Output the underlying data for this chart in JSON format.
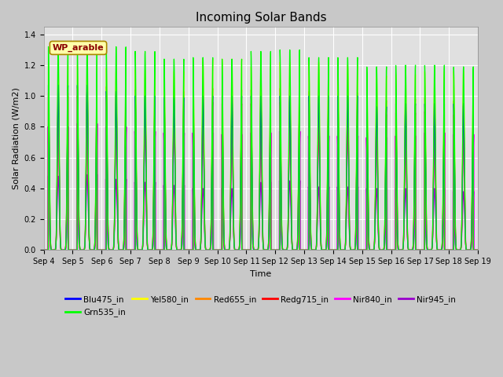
{
  "title": "Incoming Solar Bands",
  "xlabel": "Time",
  "ylabel": "Solar Radiation (W/m2)",
  "num_days": 15,
  "ylim": [
    0,
    1.45
  ],
  "yticks": [
    0.0,
    0.2,
    0.4,
    0.6,
    0.8,
    1.0,
    1.2,
    1.4
  ],
  "annotation": "WP_arable",
  "series": [
    {
      "name": "Blu475_in",
      "color": "#0000FF"
    },
    {
      "name": "Grn535_in",
      "color": "#00FF00"
    },
    {
      "name": "Yel580_in",
      "color": "#FFFF00"
    },
    {
      "name": "Red655_in",
      "color": "#FF8800"
    },
    {
      "name": "Redg715_in",
      "color": "#FF0000"
    },
    {
      "name": "Nir840_in",
      "color": "#FF00FF"
    },
    {
      "name": "Nir945_in",
      "color": "#9900CC"
    }
  ],
  "fig_facecolor": "#c8c8c8",
  "axes_facecolor": "#e0e0e0",
  "grid_color": "#ffffff",
  "title_fontsize": 11,
  "tick_fontsize": 7,
  "ylabel_fontsize": 8,
  "xlabel_fontsize": 8
}
